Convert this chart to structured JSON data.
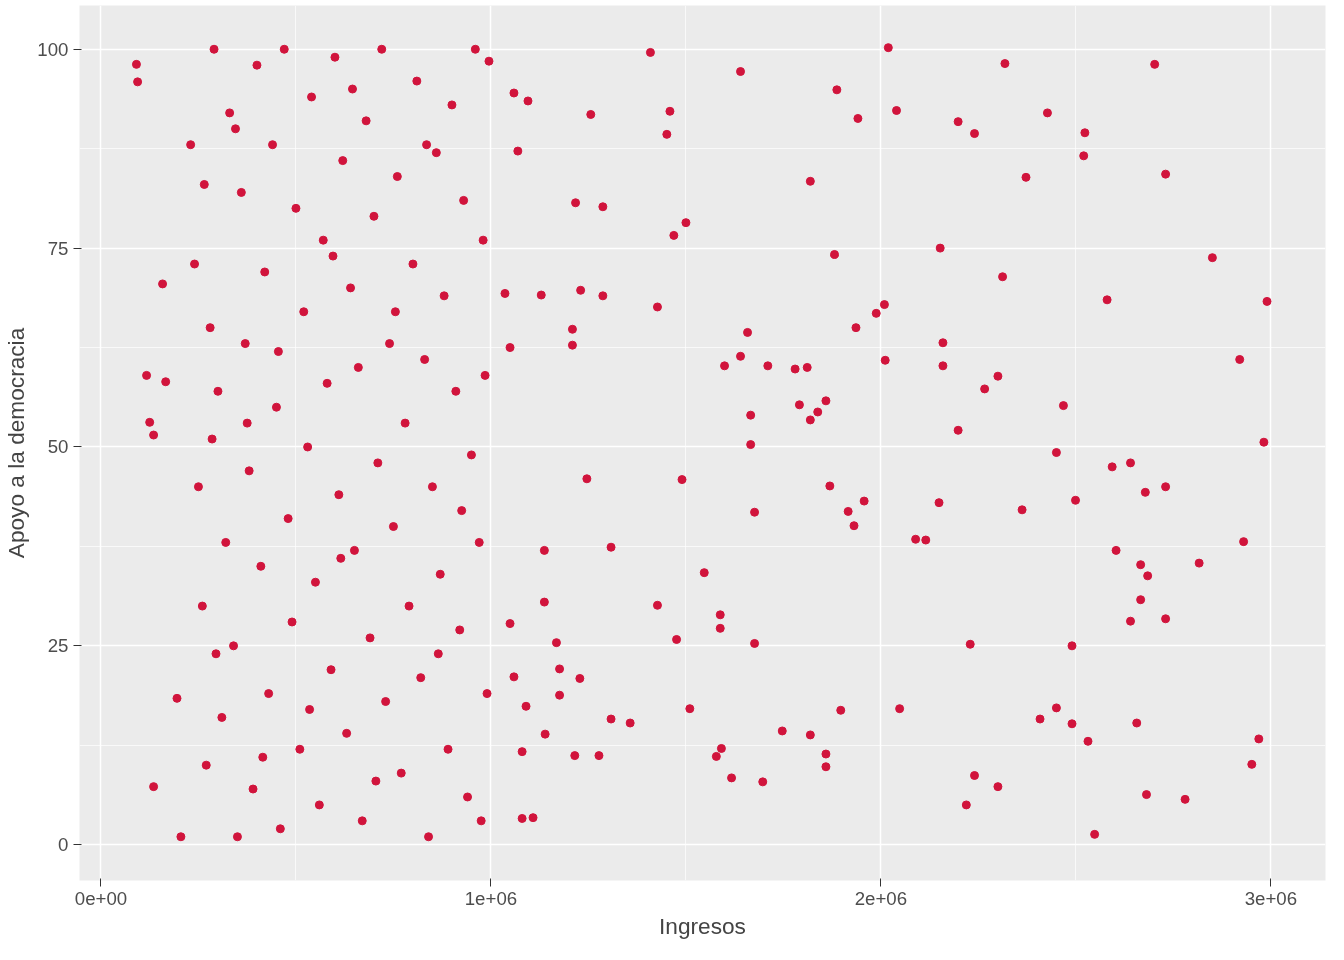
{
  "chart_data": {
    "type": "scatter",
    "xlabel": "Ingresos",
    "ylabel": "Apoyo a la democracia",
    "xlim": [
      -55000,
      3140000
    ],
    "ylim": [
      -4.5,
      105.5
    ],
    "xticks": [
      {
        "value": 0,
        "label": "0e+00"
      },
      {
        "value": 1000000,
        "label": "1e+06"
      },
      {
        "value": 2000000,
        "label": "2e+06"
      },
      {
        "value": 3000000,
        "label": "3e+06"
      }
    ],
    "yticks": [
      0,
      25,
      50,
      75,
      100
    ],
    "grid": true,
    "marker": "circle",
    "series": [
      {
        "color": "#d1143c",
        "x": [
          1409000,
          1640000,
          2702000,
          2019000,
          2318000,
          1059000,
          1095000,
          1256000,
          1459000,
          1451000,
          1887000,
          1941000,
          2040000,
          2198000,
          2240000,
          2427000,
          2523000,
          2520000,
          2730000,
          2372000,
          1819000,
          1069000,
          1217000,
          1287000,
          1500000,
          1469000,
          2152000,
          1881000,
          2850000,
          2312000,
          1036000,
          1129000,
          1230000,
          1287000,
          2580000,
          2990000,
          1427000,
          2009000,
          1988000,
          1936000,
          1209000,
          1658000,
          1209000,
          1049000,
          2159000,
          1640000,
          1599000,
          1710000,
          1780000,
          1811000,
          2011000,
          2159000,
          2300000,
          2920000,
          1791000,
          1859000,
          1838000,
          1819000,
          1666000,
          2266000,
          2468000,
          2198000,
          1666000,
          2982000,
          2450000,
          2593000,
          2640000,
          1246000,
          1490000,
          1869000,
          1957000,
          2149000,
          2499000,
          2730000,
          2678000,
          1916000,
          2362000,
          1676000,
          1931000,
          2089000,
          2115000,
          2930000,
          1308000,
          1137000,
          2603000,
          1547000,
          2816000,
          2666000,
          2684000,
          1137000,
          1427000,
          2666000,
          1588000,
          1588000,
          2640000,
          2730000,
          1049000,
          1168000,
          1476000,
          1676000,
          2229000,
          2490000,
          1176000,
          1228000,
          1059000,
          1176000,
          1090000,
          1510000,
          1897000,
          2048000,
          2450000,
          2408000,
          2490000,
          2656000,
          1308000,
          1357000,
          1139000,
          1747000,
          1819000,
          2531000,
          2969000,
          1080000,
          1215000,
          1277000,
          1591000,
          1578000,
          1859000,
          1859000,
          2951000,
          1617000,
          1697000,
          2240000,
          2300000,
          2681000,
          2780000,
          2219000,
          1080000,
          1108000,
          2548000,
          91000,
          94000,
          117000,
          158000,
          166000,
          125000,
          135000,
          135000,
          195000,
          205000,
          230000,
          240000,
          250000,
          260000,
          270000,
          280000,
          290000,
          300000,
          310000,
          320000,
          330000,
          340000,
          350000,
          360000,
          370000,
          380000,
          390000,
          400000,
          410000,
          420000,
          430000,
          440000,
          450000,
          460000,
          470000,
          480000,
          490000,
          500000,
          510000,
          520000,
          530000,
          540000,
          550000,
          560000,
          570000,
          580000,
          590000,
          600000,
          610000,
          620000,
          630000,
          640000,
          650000,
          660000,
          670000,
          680000,
          690000,
          700000,
          710000,
          720000,
          730000,
          740000,
          750000,
          760000,
          770000,
          780000,
          790000,
          800000,
          810000,
          820000,
          830000,
          840000,
          850000,
          860000,
          870000,
          880000,
          890000,
          900000,
          910000,
          920000,
          930000,
          940000,
          950000,
          960000,
          970000,
          980000,
          990000,
          995000,
          985000,
          975000,
          265000,
          285000,
          345000,
          415000,
          455000,
          535000,
          615000,
          645000,
          705000,
          755000,
          835000,
          865000,
          925000,
          295000,
          375000,
          595000
        ],
        "values": [
          99.6,
          97.2,
          98.1,
          100.2,
          98.2,
          94.5,
          93.5,
          91.8,
          92.2,
          89.3,
          94.9,
          91.3,
          92.3,
          90.9,
          89.4,
          92.0,
          89.5,
          86.6,
          84.3,
          83.9,
          83.4,
          87.2,
          80.7,
          80.2,
          78.2,
          76.6,
          75.0,
          74.2,
          73.8,
          71.4,
          69.3,
          69.1,
          69.7,
          69.0,
          68.5,
          68.3,
          67.6,
          67.9,
          66.8,
          65.0,
          64.8,
          64.4,
          62.8,
          62.5,
          63.1,
          61.4,
          60.2,
          60.2,
          59.8,
          60.0,
          60.9,
          60.2,
          58.9,
          61.0,
          55.3,
          55.8,
          54.4,
          53.4,
          54.0,
          57.3,
          55.2,
          52.1,
          50.3,
          50.6,
          49.3,
          47.5,
          48.0,
          46.0,
          45.9,
          45.1,
          43.2,
          43.0,
          43.3,
          45.0,
          44.3,
          41.9,
          42.1,
          41.8,
          40.1,
          38.4,
          38.3,
          38.1,
          37.4,
          37.0,
          37.0,
          34.2,
          35.4,
          35.2,
          33.8,
          30.5,
          30.1,
          30.8,
          28.9,
          27.2,
          28.1,
          28.4,
          27.8,
          25.4,
          25.8,
          25.3,
          25.2,
          25.0,
          22.1,
          20.9,
          21.1,
          18.8,
          17.4,
          17.1,
          16.9,
          17.1,
          17.2,
          15.8,
          15.2,
          15.3,
          15.8,
          15.3,
          13.9,
          14.3,
          13.8,
          13.0,
          13.3,
          11.7,
          11.2,
          11.2,
          12.1,
          11.1,
          11.4,
          9.8,
          10.1,
          8.4,
          7.9,
          8.7,
          7.3,
          6.3,
          5.7,
          5.0,
          3.3,
          3.4,
          1.3,
          98.1,
          95.9,
          59.0,
          70.5,
          58.2,
          53.1,
          51.5,
          7.3,
          18.4,
          1.0,
          88,
          73,
          45,
          30,
          10,
          65,
          100,
          57,
          16,
          38,
          92,
          25,
          1,
          82,
          63,
          47,
          7,
          98,
          35,
          72,
          19,
          88,
          55,
          2,
          100,
          41,
          28,
          80,
          12,
          67,
          50,
          94,
          33,
          5,
          76,
          58,
          22,
          99,
          44,
          86,
          14,
          70,
          37,
          60,
          3,
          91,
          26,
          79,
          48,
          100,
          18,
          63,
          40,
          84,
          9,
          53,
          30,
          73,
          96,
          21,
          61,
          1,
          45,
          87,
          34,
          69,
          12,
          93,
          57,
          27,
          81,
          6,
          49,
          100,
          38,
          76,
          19,
          98.5,
          59,
          3,
          83,
          51,
          90,
          11,
          62,
          17,
          36,
          95,
          8,
          67,
          88,
          24,
          42,
          24,
          53,
          74
        ]
      }
    ]
  }
}
